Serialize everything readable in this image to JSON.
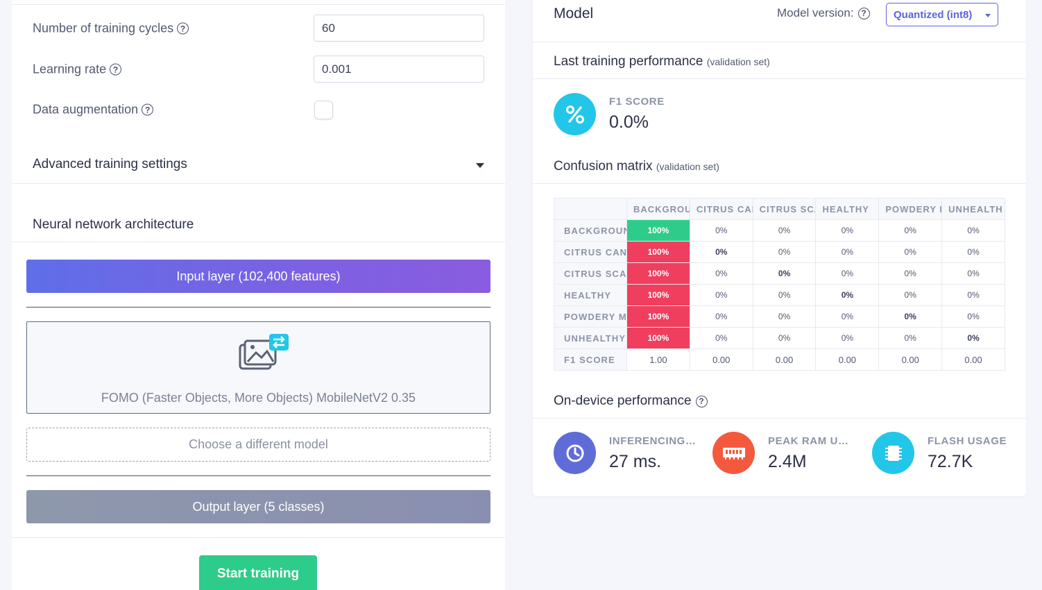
{
  "training_settings": {
    "cycles_label": "Number of training cycles",
    "cycles_value": "60",
    "learning_rate_label": "Learning rate",
    "learning_rate_value": "0.001",
    "augmentation_label": "Data augmentation",
    "augmentation_checked": false,
    "advanced_label": "Advanced training settings"
  },
  "architecture": {
    "title": "Neural network architecture",
    "input_layer": "Input layer (102,400 features)",
    "model_name": "FOMO (Faster Objects, More Objects) MobileNetV2 0.35",
    "choose_model": "Choose a different model",
    "output_layer": "Output layer (5 classes)",
    "start_button": "Start training"
  },
  "model_panel": {
    "title": "Model",
    "version_label": "Model version:",
    "version_selected": "Quantized (int8)",
    "last_perf_title": "Last training performance",
    "last_perf_sub": "(validation set)",
    "f1_label": "F1 SCORE",
    "f1_value": "0.0%",
    "confusion_title": "Confusion matrix",
    "confusion_sub": "(validation set)",
    "on_device_title": "On-device performance",
    "metrics": [
      {
        "label": "INFERENCING ...",
        "value": "27 ms.",
        "color": "#5f6cd8",
        "icon": "clock-icon"
      },
      {
        "label": "PEAK RAM US...",
        "value": "2.4M",
        "color": "#f4593e",
        "icon": "ram-icon"
      },
      {
        "label": "FLASH USAGE",
        "value": "72.7K",
        "color": "#22c6e8",
        "icon": "chip-icon"
      }
    ]
  },
  "confusion_matrix": {
    "columns": [
      "BACKGROU",
      "CITRUS CAN",
      "CITRUS SCA",
      "HEALTHY",
      "POWDERY I",
      "UNHEALTH"
    ],
    "rows": [
      {
        "label": "BACKGROUN",
        "cells": [
          "100%",
          "0%",
          "0%",
          "0%",
          "0%",
          "0%"
        ]
      },
      {
        "label": "CITRUS CANI",
        "cells": [
          "100%",
          "0%",
          "0%",
          "0%",
          "0%",
          "0%"
        ]
      },
      {
        "label": "CITRUS SCAE",
        "cells": [
          "100%",
          "0%",
          "0%",
          "0%",
          "0%",
          "0%"
        ]
      },
      {
        "label": "HEALTHY",
        "cells": [
          "100%",
          "0%",
          "0%",
          "0%",
          "0%",
          "0%"
        ]
      },
      {
        "label": "POWDERY M",
        "cells": [
          "100%",
          "0%",
          "0%",
          "0%",
          "0%",
          "0%"
        ]
      },
      {
        "label": "UNHEALTHY",
        "cells": [
          "100%",
          "0%",
          "0%",
          "0%",
          "0%",
          "0%"
        ]
      }
    ],
    "f1_row": {
      "label": "F1 SCORE",
      "cells": [
        "1.00",
        "0.00",
        "0.00",
        "0.00",
        "0.00",
        "0.00"
      ]
    },
    "colors": {
      "correct": "#2ecc8a",
      "incorrect": "#f03e5e"
    }
  }
}
